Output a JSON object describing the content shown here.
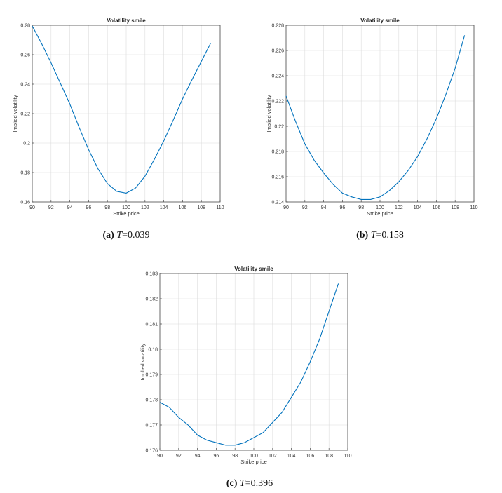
{
  "chart_data": [
    {
      "type": "line",
      "title": "Volatility smile",
      "xlabel": "Strike price",
      "ylabel": "Implied volatility",
      "xlim": [
        90,
        110
      ],
      "ylim": [
        0.16,
        0.28
      ],
      "xticks": [
        "90",
        "92",
        "94",
        "96",
        "98",
        "100",
        "102",
        "104",
        "106",
        "108",
        "110"
      ],
      "yticks": [
        "0.16",
        "0.18",
        "0.2",
        "0.22",
        "0.24",
        "0.26",
        "0.28"
      ],
      "grid": true,
      "x": [
        90,
        91,
        92,
        93,
        94,
        95,
        96,
        97,
        98,
        99,
        100,
        101,
        102,
        103,
        104,
        105,
        106,
        107,
        108,
        109
      ],
      "y": [
        0.2795,
        0.2675,
        0.2545,
        0.2405,
        0.2265,
        0.2105,
        0.1955,
        0.1825,
        0.1725,
        0.1672,
        0.166,
        0.1695,
        0.1775,
        0.189,
        0.2015,
        0.2155,
        0.23,
        0.243,
        0.2555,
        0.268
      ],
      "caption": {
        "tag": "(a)",
        "var": "T",
        "eq": "=0.039"
      }
    },
    {
      "type": "line",
      "title": "Volatility smile",
      "xlabel": "Strike price",
      "ylabel": "Implied volatility",
      "xlim": [
        90,
        110
      ],
      "ylim": [
        0.214,
        0.228
      ],
      "xticks": [
        "90",
        "92",
        "94",
        "96",
        "98",
        "100",
        "102",
        "104",
        "106",
        "108",
        "110"
      ],
      "yticks": [
        "0.214",
        "0.216",
        "0.218",
        "0.22",
        "0.222",
        "0.224",
        "0.226",
        "0.228"
      ],
      "grid": true,
      "x": [
        90,
        91,
        92,
        93,
        94,
        95,
        96,
        97,
        98,
        99,
        100,
        101,
        102,
        103,
        104,
        105,
        106,
        107,
        108,
        109
      ],
      "y": [
        0.2224,
        0.2204,
        0.2186,
        0.2173,
        0.2163,
        0.2154,
        0.2147,
        0.2144,
        0.2142,
        0.2142,
        0.2144,
        0.2149,
        0.2156,
        0.2165,
        0.2176,
        0.219,
        0.2206,
        0.2225,
        0.2246,
        0.2272
      ],
      "caption": {
        "tag": "(b)",
        "var": "T",
        "eq": "=0.158"
      }
    },
    {
      "type": "line",
      "title": "Volatility smile",
      "xlabel": "Strike price",
      "ylabel": "Implied volatility",
      "xlim": [
        90,
        110
      ],
      "ylim": [
        0.176,
        0.183
      ],
      "xticks": [
        "90",
        "92",
        "94",
        "96",
        "98",
        "100",
        "102",
        "104",
        "106",
        "108",
        "110"
      ],
      "yticks": [
        "0.176",
        "0.177",
        "0.178",
        "0.179",
        "0.18",
        "0.181",
        "0.182",
        "0.183"
      ],
      "grid": true,
      "x": [
        90,
        91,
        92,
        93,
        94,
        95,
        96,
        97,
        98,
        99,
        100,
        101,
        102,
        103,
        104,
        105,
        106,
        107,
        108,
        109
      ],
      "y": [
        0.1779,
        0.1777,
        0.1773,
        0.177,
        0.1766,
        0.1764,
        0.1763,
        0.1762,
        0.1762,
        0.1763,
        0.1765,
        0.1767,
        0.1771,
        0.1775,
        0.1781,
        0.1787,
        0.1795,
        0.1804,
        0.1815,
        0.1826
      ],
      "caption": {
        "tag": "(c)",
        "var": "T",
        "eq": "=0.396"
      }
    }
  ]
}
